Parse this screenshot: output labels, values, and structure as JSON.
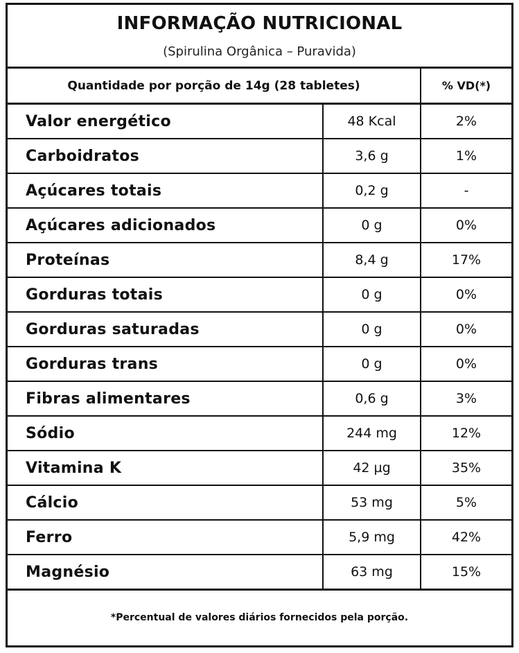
{
  "label": {
    "title": "INFORMAÇÃO NUTRICIONAL",
    "subtitle": "(Spirulina Orgânica – Puravida)",
    "serving_header": "Quantidade por porção de 14g (28 tabletes)",
    "vd_header": "% VD(*)",
    "rows": [
      {
        "name": "Valor energético",
        "amount": "48 Kcal",
        "vd": "2%"
      },
      {
        "name": "Carboidratos",
        "amount": "3,6 g",
        "vd": "1%"
      },
      {
        "name": "Açúcares totais",
        "amount": "0,2 g",
        "vd": "-"
      },
      {
        "name": "Açúcares adicionados",
        "amount": "0 g",
        "vd": "0%"
      },
      {
        "name": "Proteínas",
        "amount": "8,4 g",
        "vd": "17%"
      },
      {
        "name": "Gorduras totais",
        "amount": "0 g",
        "vd": "0%"
      },
      {
        "name": "Gorduras saturadas",
        "amount": "0 g",
        "vd": "0%"
      },
      {
        "name": "Gorduras trans",
        "amount": "0 g",
        "vd": "0%"
      },
      {
        "name": "Fibras alimentares",
        "amount": "0,6 g",
        "vd": "3%"
      },
      {
        "name": "Sódio",
        "amount": "244 mg",
        "vd": "12%"
      },
      {
        "name": "Vitamina K",
        "amount": "42 µg",
        "vd": "35%"
      },
      {
        "name": "Cálcio",
        "amount": "53 mg",
        "vd": "5%"
      },
      {
        "name": "Ferro",
        "amount": "5,9 mg",
        "vd": "42%"
      },
      {
        "name": "Magnésio",
        "amount": "63 mg",
        "vd": "15%"
      }
    ],
    "footnote": "*Percentual de valores diários fornecidos pela porção."
  }
}
